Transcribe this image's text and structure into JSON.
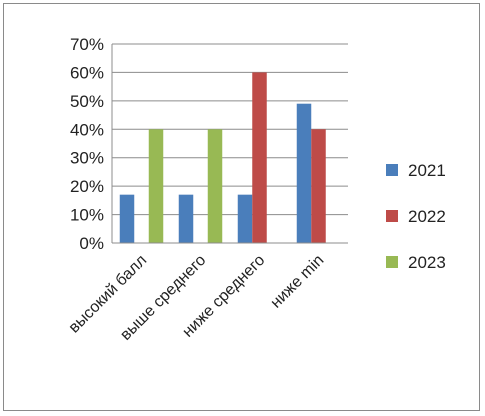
{
  "chart_data": {
    "type": "bar",
    "title": "",
    "xlabel": "",
    "ylabel": "",
    "categories": [
      "высокий балл",
      "выше среднего",
      "ниже среднего",
      "ниже min"
    ],
    "series": [
      {
        "name": "2021",
        "color": "#4a7ebb",
        "values": [
          0.17,
          0.17,
          0.17,
          0.49
        ]
      },
      {
        "name": "2022",
        "color": "#be4b48",
        "values": [
          null,
          null,
          0.6,
          0.4
        ]
      },
      {
        "name": "2023",
        "color": "#98b954",
        "values": [
          0.4,
          0.4,
          null,
          null
        ]
      }
    ],
    "ylim": [
      0,
      0.7
    ],
    "yticks": [
      0,
      0.1,
      0.2,
      0.3,
      0.4,
      0.5,
      0.6,
      0.7
    ],
    "ytick_labels": [
      "0%",
      "10%",
      "20%",
      "30%",
      "40%",
      "50%",
      "60%",
      "70%"
    ],
    "grid": true,
    "legend_position": "right",
    "colors": {
      "grid": "#8c8c8c",
      "axis": "#8c8c8c",
      "frame": "#8a8a8a"
    }
  }
}
